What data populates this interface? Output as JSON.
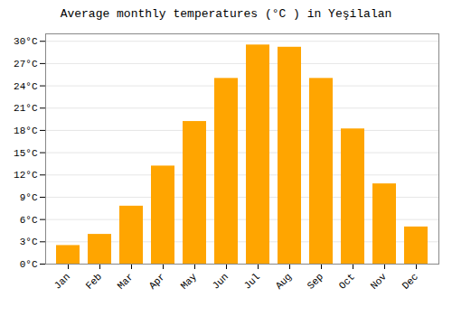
{
  "chart_data": {
    "type": "bar",
    "title": "Average monthly temperatures (°C ) in Yeşilalan",
    "categories": [
      "Jan",
      "Feb",
      "Mar",
      "Apr",
      "May",
      "Jun",
      "Jul",
      "Aug",
      "Sep",
      "Oct",
      "Nov",
      "Dec"
    ],
    "values": [
      2.5,
      4.0,
      7.8,
      13.2,
      19.2,
      25.0,
      29.5,
      29.2,
      25.0,
      18.2,
      10.8,
      5.0
    ],
    "color": "#FFA500",
    "ylim": [
      0,
      31
    ],
    "yticks": [
      {
        "value": 0,
        "label": "0°C"
      },
      {
        "value": 3,
        "label": "3°C"
      },
      {
        "value": 6,
        "label": "6°C"
      },
      {
        "value": 9,
        "label": "9°C"
      },
      {
        "value": 12,
        "label": "12°C"
      },
      {
        "value": 15,
        "label": "15°C"
      },
      {
        "value": 18,
        "label": "18°C"
      },
      {
        "value": 21,
        "label": "21°C"
      },
      {
        "value": 24,
        "label": "24°C"
      },
      {
        "value": 27,
        "label": "27°C"
      },
      {
        "value": 30,
        "label": "30°C"
      }
    ],
    "grid": true
  }
}
